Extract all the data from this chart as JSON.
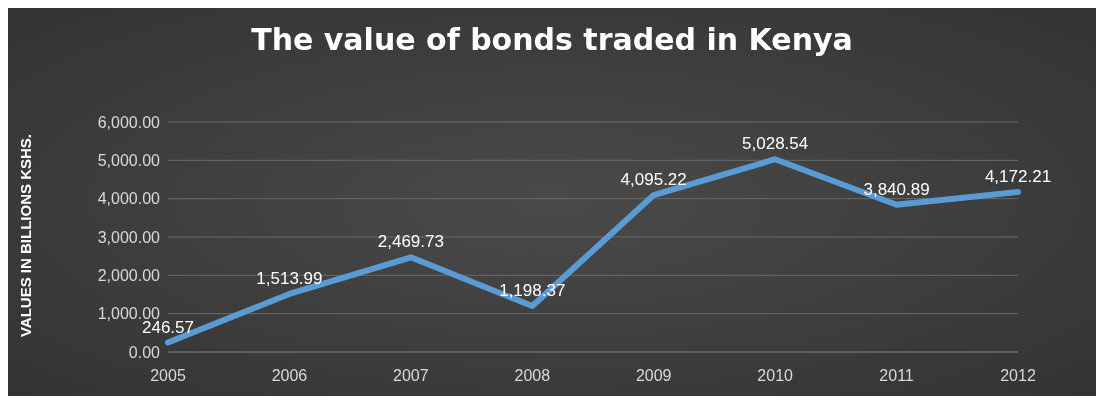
{
  "chart_data": {
    "type": "line",
    "title": "The value of bonds traded in Kenya",
    "ylabel": "VALUES IN BILLIONS KSHS.",
    "categories": [
      "2005",
      "2006",
      "2007",
      "2008",
      "2009",
      "2010",
      "2011",
      "2012"
    ],
    "series": [
      {
        "color": "#5b9bd5",
        "values": [
          246.57,
          1513.99,
          2469.73,
          1198.37,
          4095.22,
          5028.54,
          3840.89,
          4172.21
        ],
        "value_labels": [
          "246.57",
          "1,513.99",
          "2,469.73",
          "1,198.37",
          "4,095.22",
          "5,028.54",
          "3,840.89",
          "4,172.21"
        ]
      }
    ],
    "ylim": [
      0,
      6000
    ],
    "yticks": [
      {
        "value": 0,
        "label": "0.00"
      },
      {
        "value": 1000,
        "label": "1,000.00"
      },
      {
        "value": 2000,
        "label": "2,000.00"
      },
      {
        "value": 3000,
        "label": "3,000.00"
      },
      {
        "value": 4000,
        "label": "4,000.00"
      },
      {
        "value": 5000,
        "label": "5,000.00"
      },
      {
        "value": 6000,
        "label": "6,000.00"
      }
    ],
    "grid": "y",
    "legend": false,
    "marker": "none",
    "line_style": "solid"
  }
}
